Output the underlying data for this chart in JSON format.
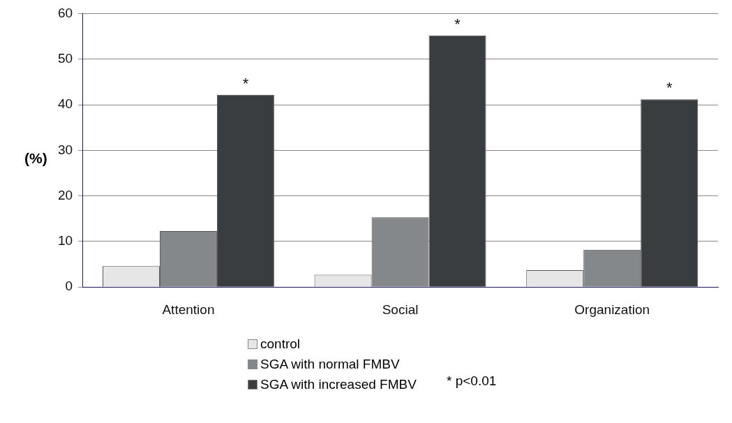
{
  "chart_data": {
    "type": "bar",
    "ylabel": "(%)",
    "categories": [
      "Attention",
      "Social",
      "Organization"
    ],
    "series": [
      {
        "name": "control",
        "color": "#e6e6e6",
        "values": [
          4.6,
          2.7,
          3.7
        ]
      },
      {
        "name": "SGA with normal FMBV",
        "color": "#85888b",
        "values": [
          12.3,
          15.3,
          8.2
        ]
      },
      {
        "name": "SGA with increased FMBV",
        "color": "#3a3d40",
        "values": [
          42.2,
          55.2,
          41.2
        ]
      }
    ],
    "ylim": [
      0,
      60
    ],
    "yticks": [
      0,
      10,
      20,
      30,
      40,
      50,
      60
    ],
    "grid": "y",
    "legend": "bottom",
    "annotations": [
      "*",
      "*",
      "*",
      "* p<0.01"
    ]
  }
}
